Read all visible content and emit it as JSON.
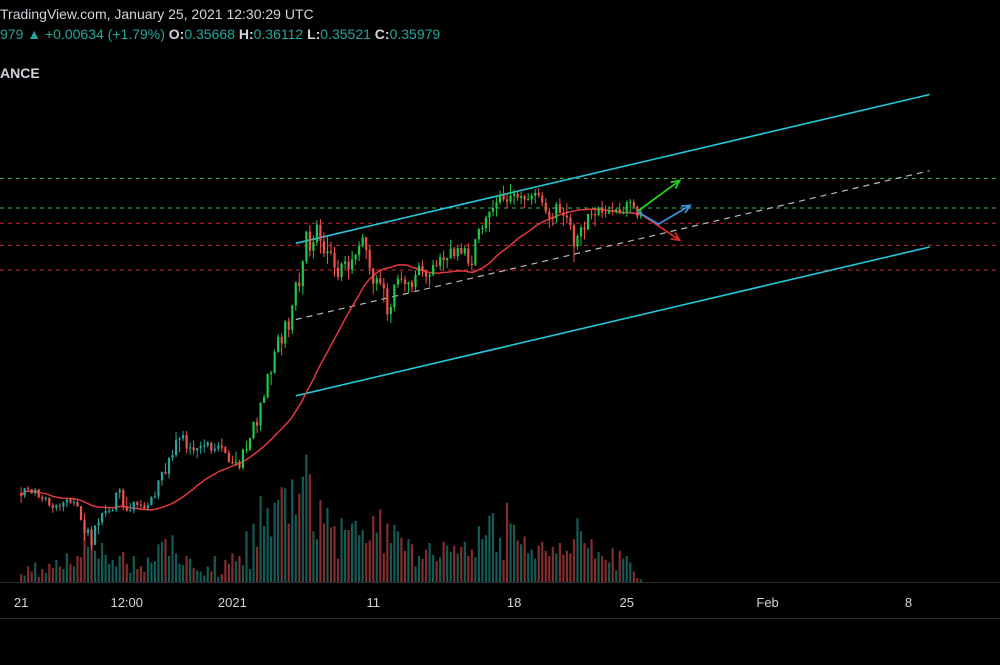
{
  "header": {
    "line1": "TradingView.com, January 25, 2021 12:30:29 UTC",
    "last": "979",
    "change_arrow": "▲",
    "change": "+0.00634 (+1.79%)",
    "o_label": "O:",
    "o_value": "0.35668",
    "h_label": "H:",
    "h_value": "0.36112",
    "l_label": "L:",
    "l_value": "0.35521",
    "c_label": "C:",
    "c_value": "0.35979",
    "symbol_fragment": "ANCE"
  },
  "colors": {
    "background": "#000000",
    "up": "#26a69a",
    "up_bright": "#1ec94a",
    "down": "#ef5350",
    "ma": "#e0393e",
    "channel": "#26c6da",
    "level_green": "#3bb54a",
    "level_red": "#c9252d",
    "midline": "#bbbbbb",
    "arrow_green": "#23d11f",
    "arrow_red": "#d62a2a",
    "arrow_blue": "#3d8fe0",
    "text": "#d1d4dc"
  },
  "chart_data": {
    "type": "candlestick",
    "x_axis": {
      "unit": "bar index (hourly-spaced scale)",
      "tick_labels": [
        {
          "x": 0,
          "label": "21"
        },
        {
          "x": 30,
          "label": "12:00"
        },
        {
          "x": 60,
          "label": "2021"
        },
        {
          "x": 100,
          "label": "11"
        },
        {
          "x": 140,
          "label": "18"
        },
        {
          "x": 172,
          "label": "25"
        },
        {
          "x": 212,
          "label": "Feb"
        },
        {
          "x": 252,
          "label": "8"
        }
      ],
      "range": [
        -6,
        278
      ]
    },
    "y_axis": {
      "range": [
        0.13,
        0.46
      ]
    },
    "volume_range": [
      0,
      100
    ],
    "candles": [
      [
        0.1851,
        0.1887,
        0.1792,
        0.1836
      ],
      [
        0.1836,
        0.1882,
        0.1822,
        0.1882
      ],
      [
        0.1882,
        0.1895,
        0.1864,
        0.1876
      ],
      [
        0.1876,
        0.1878,
        0.1848,
        0.185
      ],
      [
        0.185,
        0.1883,
        0.1836,
        0.1873
      ],
      [
        0.1873,
        0.1879,
        0.1819,
        0.1826
      ],
      [
        0.1826,
        0.184,
        0.1797,
        0.1814
      ],
      [
        0.1814,
        0.1831,
        0.18,
        0.1823
      ],
      [
        0.1823,
        0.1823,
        0.1766,
        0.1776
      ],
      [
        0.1776,
        0.179,
        0.173,
        0.176
      ],
      [
        0.176,
        0.1782,
        0.1742,
        0.1775
      ],
      [
        0.1775,
        0.1789,
        0.1743,
        0.1769
      ],
      [
        0.1769,
        0.18,
        0.1738,
        0.1793
      ],
      [
        0.1793,
        0.182,
        0.1765,
        0.1811
      ],
      [
        0.1811,
        0.1824,
        0.1785,
        0.1793
      ],
      [
        0.1793,
        0.1813,
        0.1773,
        0.1796
      ],
      [
        0.1796,
        0.1812,
        0.1766,
        0.177
      ],
      [
        0.177,
        0.177,
        0.1681,
        0.1684
      ],
      [
        0.1684,
        0.1726,
        0.1559,
        0.1604
      ],
      [
        0.1604,
        0.1639,
        0.1582,
        0.1627
      ],
      [
        0.1627,
        0.1647,
        0.1499,
        0.153
      ],
      [
        0.153,
        0.1651,
        0.153,
        0.1651
      ],
      [
        0.1651,
        0.1697,
        0.1596,
        0.167
      ],
      [
        0.167,
        0.1729,
        0.165,
        0.1729
      ],
      [
        0.1729,
        0.1778,
        0.1706,
        0.1741
      ],
      [
        0.1741,
        0.1759,
        0.1724,
        0.1742
      ],
      [
        0.1742,
        0.1755,
        0.1736,
        0.1748
      ],
      [
        0.1748,
        0.1855,
        0.1734,
        0.1855
      ],
      [
        0.1855,
        0.1883,
        0.1816,
        0.1871
      ],
      [
        0.1871,
        0.1879,
        0.1745,
        0.1768
      ],
      [
        0.1768,
        0.1827,
        0.1736,
        0.1743
      ],
      [
        0.1743,
        0.1791,
        0.1733,
        0.1746
      ],
      [
        0.1746,
        0.1802,
        0.1725,
        0.1796
      ],
      [
        0.1796,
        0.1803,
        0.1754,
        0.1778
      ],
      [
        0.1778,
        0.1809,
        0.1753,
        0.1775
      ],
      [
        0.1775,
        0.1795,
        0.1751,
        0.1756
      ],
      [
        0.1756,
        0.1794,
        0.1743,
        0.1777
      ],
      [
        0.1777,
        0.1833,
        0.1775,
        0.1827
      ],
      [
        0.1827,
        0.1862,
        0.1817,
        0.1832
      ],
      [
        0.1832,
        0.1933,
        0.1813,
        0.193
      ],
      [
        0.193,
        0.1986,
        0.1897,
        0.1983
      ],
      [
        0.1983,
        0.2038,
        0.1966,
        0.1971
      ],
      [
        0.1971,
        0.2074,
        0.1943,
        0.2069
      ],
      [
        0.2069,
        0.2118,
        0.2051,
        0.2087
      ],
      [
        0.2087,
        0.2231,
        0.2074,
        0.2183
      ],
      [
        0.2183,
        0.2201,
        0.2105,
        0.219
      ],
      [
        0.219,
        0.2237,
        0.2175,
        0.2212
      ],
      [
        0.2212,
        0.2237,
        0.2099,
        0.2128
      ],
      [
        0.2128,
        0.2167,
        0.2089,
        0.2135
      ],
      [
        0.2135,
        0.2177,
        0.2091,
        0.2116
      ],
      [
        0.2116,
        0.2131,
        0.2069,
        0.2129
      ],
      [
        0.2129,
        0.2171,
        0.2094,
        0.2144
      ],
      [
        0.2144,
        0.2185,
        0.2102,
        0.2146
      ],
      [
        0.2146,
        0.2175,
        0.2134,
        0.2165
      ],
      [
        0.2165,
        0.2168,
        0.2093,
        0.2115
      ],
      [
        0.2115,
        0.2158,
        0.2101,
        0.2127
      ],
      [
        0.2127,
        0.2169,
        0.2108,
        0.2145
      ],
      [
        0.2145,
        0.2191,
        0.2108,
        0.2136
      ],
      [
        0.2136,
        0.2143,
        0.2096,
        0.21
      ],
      [
        0.21,
        0.212,
        0.2042,
        0.2043
      ],
      [
        0.2043,
        0.2085,
        0.2029,
        0.204
      ],
      [
        0.204,
        0.2107,
        0.2018,
        0.2044
      ],
      [
        0.2044,
        0.2059,
        0.1996,
        0.2008
      ],
      [
        0.2008,
        0.2129,
        0.1997,
        0.212
      ],
      [
        0.212,
        0.2175,
        0.21,
        0.2123
      ],
      [
        0.2123,
        0.2194,
        0.2111,
        0.2193
      ],
      [
        0.2193,
        0.2294,
        0.2184,
        0.2294
      ],
      [
        0.2294,
        0.2319,
        0.2223,
        0.227
      ],
      [
        0.227,
        0.2416,
        0.2236,
        0.2411
      ],
      [
        0.2411,
        0.2464,
        0.241,
        0.2447
      ],
      [
        0.2447,
        0.2594,
        0.2437,
        0.259
      ],
      [
        0.259,
        0.2611,
        0.2521,
        0.2598
      ],
      [
        0.2598,
        0.2741,
        0.2591,
        0.2728
      ],
      [
        0.2728,
        0.2839,
        0.2721,
        0.2821
      ],
      [
        0.2821,
        0.2843,
        0.2707,
        0.2781
      ],
      [
        0.2781,
        0.2925,
        0.2752,
        0.2916
      ],
      [
        0.2916,
        0.294,
        0.2818,
        0.2865
      ],
      [
        0.2865,
        0.302,
        0.2838,
        0.3015
      ],
      [
        0.3015,
        0.3165,
        0.2982,
        0.3157
      ],
      [
        0.3157,
        0.3219,
        0.3096,
        0.3135
      ],
      [
        0.3135,
        0.3297,
        0.3084,
        0.3288
      ],
      [
        0.3288,
        0.3479,
        0.3273,
        0.3473
      ],
      [
        0.3473,
        0.3514,
        0.3319,
        0.3354
      ],
      [
        0.3354,
        0.3449,
        0.3307,
        0.3409
      ],
      [
        0.3409,
        0.3544,
        0.3384,
        0.3515
      ],
      [
        0.3515,
        0.3551,
        0.3337,
        0.3414
      ],
      [
        0.3414,
        0.3469,
        0.3316,
        0.3339
      ],
      [
        0.3339,
        0.345,
        0.3273,
        0.3352
      ],
      [
        0.3352,
        0.3412,
        0.3326,
        0.3343
      ],
      [
        0.3343,
        0.3379,
        0.3193,
        0.325
      ],
      [
        0.325,
        0.3299,
        0.3171,
        0.3191
      ],
      [
        0.3191,
        0.3284,
        0.3168,
        0.3274
      ],
      [
        0.3274,
        0.3322,
        0.3242,
        0.3287
      ],
      [
        0.3287,
        0.3324,
        0.3177,
        0.3239
      ],
      [
        0.3239,
        0.3354,
        0.3211,
        0.33
      ],
      [
        0.33,
        0.3334,
        0.3267,
        0.3329
      ],
      [
        0.3329,
        0.3413,
        0.3291,
        0.3388
      ],
      [
        0.3388,
        0.346,
        0.3375,
        0.3438
      ],
      [
        0.3438,
        0.344,
        0.3305,
        0.3361
      ],
      [
        0.3361,
        0.3389,
        0.3205,
        0.3245
      ],
      [
        0.3245,
        0.325,
        0.3087,
        0.315
      ],
      [
        0.315,
        0.3203,
        0.3106,
        0.3184
      ],
      [
        0.3184,
        0.3236,
        0.314,
        0.3152
      ],
      [
        0.3152,
        0.3186,
        0.3035,
        0.3121
      ],
      [
        0.3121,
        0.3154,
        0.2921,
        0.2961
      ],
      [
        0.2961,
        0.3027,
        0.2908,
        0.3006
      ],
      [
        0.3006,
        0.3146,
        0.298,
        0.3146
      ],
      [
        0.3146,
        0.3206,
        0.3125,
        0.3182
      ],
      [
        0.3182,
        0.3228,
        0.3157,
        0.3176
      ],
      [
        0.3176,
        0.3201,
        0.31,
        0.3148
      ],
      [
        0.3148,
        0.3163,
        0.3092,
        0.316
      ],
      [
        0.316,
        0.3172,
        0.3098,
        0.3129
      ],
      [
        0.3129,
        0.3234,
        0.31,
        0.3205
      ],
      [
        0.3205,
        0.3283,
        0.32,
        0.326
      ],
      [
        0.326,
        0.3296,
        0.3193,
        0.3229
      ],
      [
        0.3229,
        0.3236,
        0.3149,
        0.3194
      ],
      [
        0.3194,
        0.3218,
        0.3133,
        0.3207
      ],
      [
        0.3207,
        0.3298,
        0.3195,
        0.3267
      ],
      [
        0.3267,
        0.3298,
        0.3251,
        0.3262
      ],
      [
        0.3262,
        0.3339,
        0.3237,
        0.3315
      ],
      [
        0.3315,
        0.3356,
        0.3232,
        0.3296
      ],
      [
        0.3296,
        0.3312,
        0.3249,
        0.3309
      ],
      [
        0.3309,
        0.3424,
        0.3303,
        0.3367
      ],
      [
        0.3367,
        0.3378,
        0.3304,
        0.3322
      ],
      [
        0.3322,
        0.3384,
        0.3293,
        0.3371
      ],
      [
        0.3371,
        0.3401,
        0.3331,
        0.3337
      ],
      [
        0.3337,
        0.3384,
        0.3323,
        0.337
      ],
      [
        0.337,
        0.3401,
        0.3259,
        0.3276
      ],
      [
        0.3276,
        0.3326,
        0.3232,
        0.3266
      ],
      [
        0.3266,
        0.3431,
        0.326,
        0.3425
      ],
      [
        0.3425,
        0.3498,
        0.3404,
        0.3489
      ],
      [
        0.3489,
        0.3515,
        0.3457,
        0.3496
      ],
      [
        0.3496,
        0.3573,
        0.3468,
        0.356
      ],
      [
        0.356,
        0.3599,
        0.3472,
        0.3598
      ],
      [
        0.3598,
        0.3669,
        0.357,
        0.3621
      ],
      [
        0.3621,
        0.3686,
        0.3567,
        0.3656
      ],
      [
        0.3656,
        0.373,
        0.3639,
        0.3701
      ],
      [
        0.3701,
        0.3757,
        0.366,
        0.3673
      ],
      [
        0.3673,
        0.371,
        0.3617,
        0.366
      ],
      [
        0.366,
        0.3769,
        0.3643,
        0.3696
      ],
      [
        0.3696,
        0.3736,
        0.3641,
        0.3709
      ],
      [
        0.3709,
        0.372,
        0.3664,
        0.3684
      ],
      [
        0.3684,
        0.372,
        0.3643,
        0.3694
      ],
      [
        0.3694,
        0.3704,
        0.3619,
        0.3672
      ],
      [
        0.3672,
        0.3712,
        0.3666,
        0.3675
      ],
      [
        0.3675,
        0.3714,
        0.3639,
        0.3697
      ],
      [
        0.3697,
        0.3737,
        0.3648,
        0.3713
      ],
      [
        0.3713,
        0.3744,
        0.3683,
        0.3698
      ],
      [
        0.3698,
        0.3719,
        0.363,
        0.3653
      ],
      [
        0.3653,
        0.368,
        0.358,
        0.3598
      ],
      [
        0.3598,
        0.3622,
        0.3497,
        0.3558
      ],
      [
        0.3558,
        0.3589,
        0.3508,
        0.3556
      ],
      [
        0.3556,
        0.3657,
        0.3524,
        0.3643
      ],
      [
        0.3643,
        0.3679,
        0.3586,
        0.359
      ],
      [
        0.359,
        0.3624,
        0.3509,
        0.3572
      ],
      [
        0.3572,
        0.3649,
        0.3525,
        0.3561
      ],
      [
        0.3561,
        0.3582,
        0.3485,
        0.3513
      ],
      [
        0.3513,
        0.3527,
        0.3283,
        0.3381
      ],
      [
        0.3381,
        0.3462,
        0.3359,
        0.3446
      ],
      [
        0.3446,
        0.3517,
        0.3385,
        0.3499
      ],
      [
        0.3499,
        0.3536,
        0.3425,
        0.3487
      ],
      [
        0.3487,
        0.3584,
        0.3484,
        0.3584
      ],
      [
        0.3584,
        0.3614,
        0.3549,
        0.3581
      ],
      [
        0.3581,
        0.3607,
        0.3507,
        0.3578
      ],
      [
        0.3578,
        0.363,
        0.3568,
        0.3623
      ],
      [
        0.3623,
        0.3661,
        0.3558,
        0.3592
      ],
      [
        0.3592,
        0.3637,
        0.3561,
        0.3586
      ],
      [
        0.3586,
        0.363,
        0.3582,
        0.3606
      ],
      [
        0.3606,
        0.3656,
        0.3575,
        0.3597
      ],
      [
        0.3597,
        0.3614,
        0.3584,
        0.3614
      ],
      [
        0.3614,
        0.3653,
        0.3582,
        0.3588
      ],
      [
        0.3588,
        0.3629,
        0.3579,
        0.3595
      ],
      [
        0.3595,
        0.3667,
        0.3566,
        0.3655
      ],
      [
        0.3655,
        0.3676,
        0.3589,
        0.3656
      ],
      [
        0.3656,
        0.3674,
        0.3622,
        0.3627
      ],
      [
        0.3627,
        0.3635,
        0.3551,
        0.3567
      ],
      [
        0.3567,
        0.3611,
        0.3552,
        0.3598
      ]
    ],
    "volume": [
      6,
      5,
      12,
      8,
      15,
      4,
      10,
      7,
      14,
      11,
      17,
      12,
      10,
      22,
      14,
      12,
      20,
      19,
      45,
      27,
      32,
      24,
      18,
      30,
      21,
      14,
      17,
      12,
      20,
      23,
      14,
      7,
      20,
      10,
      12,
      8,
      19,
      15,
      16,
      29,
      31,
      33,
      20,
      36,
      22,
      14,
      13,
      20,
      18,
      11,
      9,
      8,
      5,
      12,
      8,
      20,
      4,
      6,
      17,
      14,
      22,
      16,
      20,
      13,
      39,
      10,
      45,
      27,
      66,
      43,
      57,
      35,
      61,
      63,
      73,
      72,
      45,
      79,
      52,
      68,
      81,
      98,
      83,
      39,
      33,
      63,
      45,
      57,
      42,
      43,
      18,
      49,
      40,
      40,
      45,
      47,
      36,
      40,
      30,
      32,
      51,
      38,
      56,
      22,
      45,
      30,
      44,
      39,
      34,
      24,
      33,
      29,
      12,
      20,
      18,
      25,
      30,
      21,
      16,
      19,
      31,
      28,
      23,
      28,
      22,
      27,
      31,
      20,
      25,
      19,
      43,
      33,
      36,
      51,
      53,
      23,
      34,
      17,
      61,
      45,
      44,
      32,
      29,
      35,
      22,
      25,
      18,
      28,
      31,
      24,
      20,
      27,
      22,
      30,
      21,
      24,
      22,
      33,
      49,
      39,
      30,
      26,
      33,
      18,
      23,
      20,
      17,
      15,
      26,
      9,
      24,
      18,
      20,
      15,
      8,
      3,
      2
    ],
    "moving_average": "30-bar simple moving average of close (red line)",
    "channel": {
      "upper": [
        [
          78,
          0.3401
        ],
        [
          180,
          0.3924
        ],
        [
          258,
          0.4324
        ]
      ],
      "lower": [
        [
          78,
          0.2455
        ],
        [
          180,
          0.2978
        ],
        [
          258,
          0.3378
        ]
      ],
      "mid_dashed": [
        [
          78,
          0.2928
        ],
        [
          180,
          0.3451
        ],
        [
          258,
          0.3851
        ]
      ]
    },
    "levels": [
      {
        "value": 0.3804,
        "color": "green",
        "style": "dashed"
      },
      {
        "value": 0.362,
        "color": "green",
        "style": "dashed"
      },
      {
        "value": 0.3525,
        "color": "red",
        "style": "dashed"
      },
      {
        "value": 0.3388,
        "color": "red",
        "style": "dashed"
      },
      {
        "value": 0.3235,
        "color": "red",
        "style": "dashed"
      }
    ],
    "projection_arrows": [
      {
        "color": "green",
        "from": [
          175,
          0.3598
        ],
        "to": [
          187,
          0.379
        ]
      },
      {
        "color": "red",
        "from": [
          175,
          0.3598
        ],
        "to": [
          187,
          0.342
        ]
      },
      {
        "color": "blue",
        "from": [
          175,
          0.3598
        ],
        "to": [
          181,
          0.352
        ],
        "to2": [
          190,
          0.3636
        ]
      }
    ]
  }
}
